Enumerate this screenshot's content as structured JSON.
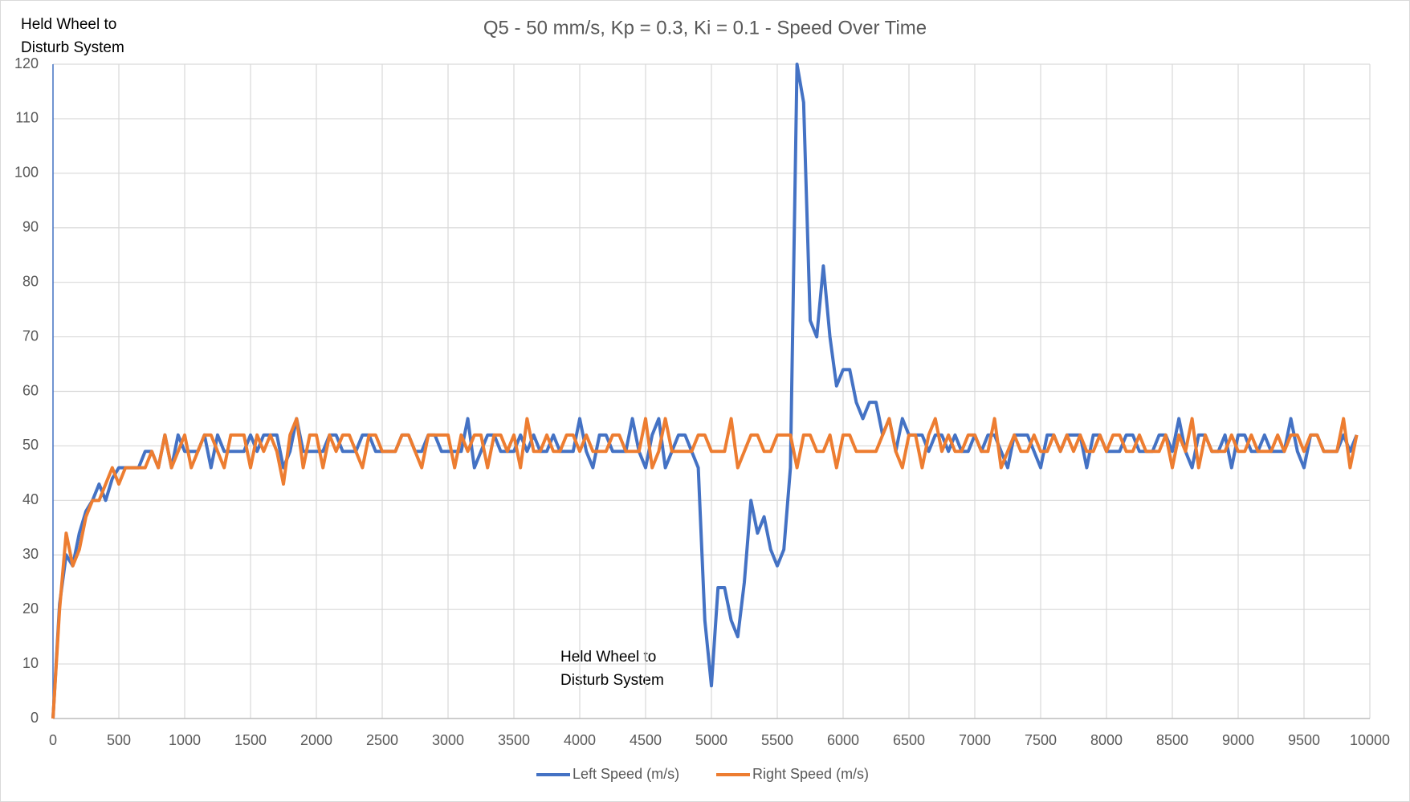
{
  "chart_data": {
    "type": "line",
    "title": "Q5 - 50 mm/s, Kp = 0.3, Ki = 0.1 - Speed Over Time",
    "annotations": [
      [
        "Held Wheel to",
        "Disturb System"
      ],
      [
        "Held Wheel to",
        "Disturb System"
      ]
    ],
    "x": [
      0,
      50,
      100,
      150,
      200,
      250,
      300,
      350,
      400,
      450,
      500,
      550,
      600,
      650,
      700,
      750,
      800,
      850,
      900,
      950,
      1000,
      1050,
      1100,
      1150,
      1200,
      1250,
      1300,
      1350,
      1400,
      1450,
      1500,
      1550,
      1600,
      1650,
      1700,
      1750,
      1800,
      1850,
      1900,
      1950,
      2000,
      2050,
      2100,
      2150,
      2200,
      2250,
      2300,
      2350,
      2400,
      2450,
      2500,
      2550,
      2600,
      2650,
      2700,
      2750,
      2800,
      2850,
      2900,
      2950,
      3000,
      3050,
      3100,
      3150,
      3200,
      3250,
      3300,
      3350,
      3400,
      3450,
      3500,
      3550,
      3600,
      3650,
      3700,
      3750,
      3800,
      3850,
      3900,
      3950,
      4000,
      4050,
      4100,
      4150,
      4200,
      4250,
      4300,
      4350,
      4400,
      4450,
      4500,
      4550,
      4600,
      4650,
      4700,
      4750,
      4800,
      4850,
      4900,
      4950,
      5000,
      5050,
      5100,
      5150,
      5200,
      5250,
      5300,
      5350,
      5400,
      5450,
      5500,
      5550,
      5600,
      5650,
      5700,
      5750,
      5800,
      5850,
      5900,
      5950,
      6000,
      6050,
      6100,
      6150,
      6200,
      6250,
      6300,
      6350,
      6400,
      6450,
      6500,
      6550,
      6600,
      6650,
      6700,
      6750,
      6800,
      6850,
      6900,
      6950,
      7000,
      7050,
      7100,
      7150,
      7200,
      7250,
      7300,
      7350,
      7400,
      7450,
      7500,
      7550,
      7600,
      7650,
      7700,
      7750,
      7800,
      7850,
      7900,
      7950,
      8000,
      8050,
      8100,
      8150,
      8200,
      8250,
      8300,
      8350,
      8400,
      8450,
      8500,
      8550,
      8600,
      8650,
      8700,
      8750,
      8800,
      8850,
      8900,
      8950,
      9000,
      9050,
      9100,
      9150,
      9200,
      9250,
      9300,
      9350,
      9400,
      9450,
      9500,
      9550,
      9600,
      9650,
      9700,
      9750,
      9800,
      9850,
      9900
    ],
    "series": [
      {
        "name": "Left Speed (m/s)",
        "color": "#4472c4",
        "values": [
          0,
          21,
          30,
          28,
          34,
          38,
          40,
          43,
          40,
          44,
          46,
          46,
          46,
          46,
          49,
          49,
          46,
          52,
          46,
          52,
          49,
          49,
          49,
          52,
          46,
          52,
          49,
          49,
          49,
          49,
          52,
          49,
          52,
          52,
          52,
          46,
          49,
          55,
          49,
          49,
          49,
          49,
          52,
          52,
          49,
          49,
          49,
          52,
          52,
          49,
          49,
          49,
          49,
          52,
          52,
          49,
          49,
          52,
          52,
          49,
          49,
          49,
          49,
          55,
          46,
          49,
          52,
          52,
          49,
          49,
          49,
          52,
          49,
          52,
          49,
          49,
          52,
          49,
          49,
          49,
          55,
          49,
          46,
          52,
          52,
          49,
          49,
          49,
          55,
          49,
          46,
          52,
          55,
          46,
          49,
          52,
          52,
          49,
          46,
          18,
          6,
          24,
          24,
          18,
          15,
          25,
          40,
          34,
          37,
          31,
          28,
          31,
          46,
          120,
          113,
          73,
          70,
          83,
          70,
          61,
          64,
          64,
          58,
          55,
          58,
          58,
          52,
          55,
          49,
          55,
          52,
          52,
          52,
          49,
          52,
          52,
          49,
          52,
          49,
          49,
          52,
          49,
          52,
          52,
          49,
          46,
          52,
          52,
          52,
          49,
          46,
          52,
          52,
          49,
          52,
          52,
          52,
          46,
          52,
          52,
          49,
          49,
          49,
          52,
          52,
          49,
          49,
          49,
          52,
          52,
          49,
          55,
          49,
          46,
          52,
          52,
          49,
          49,
          52,
          46,
          52,
          52,
          49,
          49,
          52,
          49,
          49,
          49,
          55,
          49,
          46,
          52,
          52,
          49,
          49,
          49,
          52,
          49,
          52
        ]
      },
      {
        "name": "Right Speed (m/s)",
        "color": "#ed7d31",
        "values": [
          0,
          20,
          34,
          28,
          31,
          37,
          40,
          40,
          43,
          46,
          43,
          46,
          46,
          46,
          46,
          49,
          46,
          52,
          46,
          49,
          52,
          46,
          49,
          52,
          52,
          49,
          46,
          52,
          52,
          52,
          46,
          52,
          49,
          52,
          49,
          43,
          52,
          55,
          46,
          52,
          52,
          46,
          52,
          49,
          52,
          52,
          49,
          46,
          52,
          52,
          49,
          49,
          49,
          52,
          52,
          49,
          46,
          52,
          52,
          52,
          52,
          46,
          52,
          49,
          52,
          52,
          46,
          52,
          52,
          49,
          52,
          46,
          55,
          49,
          49,
          52,
          49,
          49,
          52,
          52,
          49,
          52,
          49,
          49,
          49,
          52,
          52,
          49,
          49,
          49,
          55,
          46,
          49,
          55,
          49,
          49,
          49,
          49,
          52,
          52,
          49,
          49,
          49,
          55,
          46,
          49,
          52,
          52,
          49,
          49,
          52,
          52,
          52,
          46,
          52,
          52,
          49,
          49,
          52,
          46,
          52,
          52,
          49,
          49,
          49,
          49,
          52,
          55,
          49,
          46,
          52,
          52,
          46,
          52,
          55,
          49,
          52,
          49,
          49,
          52,
          52,
          49,
          49,
          55,
          46,
          49,
          52,
          49,
          49,
          52,
          49,
          49,
          52,
          49,
          52,
          49,
          52,
          49,
          49,
          52,
          49,
          52,
          52,
          49,
          49,
          52,
          49,
          49,
          49,
          52,
          46,
          52,
          49,
          55,
          46,
          52,
          49,
          49,
          49,
          52,
          49,
          49,
          52,
          49,
          49,
          49,
          52,
          49,
          52,
          52,
          49,
          52,
          52,
          49,
          49,
          49,
          55,
          46,
          52
        ]
      }
    ],
    "xlim": [
      0,
      10000
    ],
    "xticks": [
      0,
      500,
      1000,
      1500,
      2000,
      2500,
      3000,
      3500,
      4000,
      4500,
      5000,
      5500,
      6000,
      6500,
      7000,
      7500,
      8000,
      8500,
      9000,
      9500,
      10000
    ],
    "ylim": [
      0,
      120
    ],
    "yticks": [
      0,
      10,
      20,
      30,
      40,
      50,
      60,
      70,
      80,
      90,
      100,
      110,
      120
    ],
    "grid": true,
    "legend": "bottom"
  }
}
